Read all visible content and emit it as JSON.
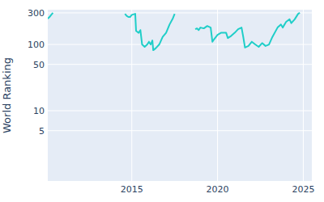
{
  "chart_data": {
    "type": "line",
    "y_label": "World Ranking",
    "color": "#1fcec8",
    "log": "y",
    "grid": true,
    "xlim": [
      2010.1,
      2025.5
    ],
    "xticks": [
      2015,
      2020,
      2025
    ],
    "ylim": [
      0.87,
      335
    ],
    "yticks": [
      5,
      10,
      50,
      100,
      300
    ],
    "x": [
      2010.1,
      2010.2,
      2010.3,
      2010.4,
      2012.5,
      2014.6,
      2014.7,
      2014.8,
      2014.9,
      2015.0,
      2015.2,
      2015.25,
      2015.4,
      2015.5,
      2015.6,
      2015.75,
      2015.9,
      2016.0,
      2016.1,
      2016.2,
      2016.25,
      2016.4,
      2016.6,
      2016.8,
      2017.0,
      2017.2,
      2017.4,
      2017.5,
      2018.1,
      2018.7,
      2018.8,
      2018.9,
      2019.0,
      2019.2,
      2019.4,
      2019.6,
      2019.7,
      2019.8,
      2020.0,
      2020.2,
      2020.5,
      2020.6,
      2020.8,
      2021.0,
      2021.2,
      2021.4,
      2021.5,
      2021.6,
      2021.8,
      2022.0,
      2022.2,
      2022.4,
      2022.6,
      2022.8,
      2023.0,
      2023.2,
      2023.5,
      2023.7,
      2023.8,
      2024.0,
      2024.2,
      2024.3,
      2024.5,
      2024.7,
      2024.8
    ],
    "values": [
      245,
      260,
      280,
      300,
      null,
      290,
      270,
      260,
      260,
      280,
      290,
      160,
      150,
      165,
      100,
      92,
      100,
      110,
      100,
      115,
      82,
      88,
      100,
      130,
      150,
      200,
      250,
      290,
      null,
      170,
      175,
      165,
      180,
      175,
      190,
      180,
      110,
      120,
      140,
      150,
      150,
      125,
      135,
      150,
      170,
      180,
      130,
      90,
      95,
      110,
      100,
      92,
      105,
      95,
      100,
      130,
      180,
      200,
      180,
      220,
      240,
      210,
      240,
      290,
      300
    ]
  }
}
